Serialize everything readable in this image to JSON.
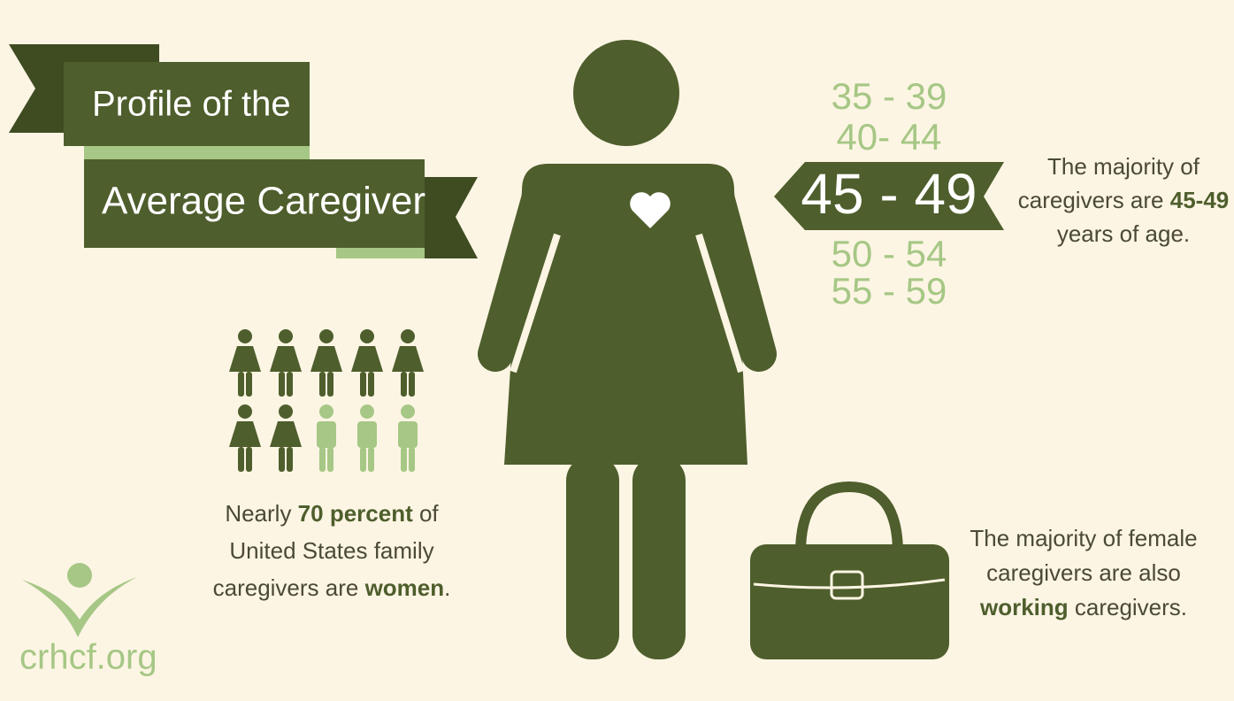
{
  "title": {
    "lines": [
      "Profile of the",
      "Average Caregiver"
    ]
  },
  "ages": {
    "above": [
      "35 - 39",
      "40- 44"
    ],
    "highlight": "45 - 49",
    "below": [
      "50 - 54",
      "55 - 59"
    ]
  },
  "age_note": {
    "lines": [
      [
        {
          "text": "The majority of"
        }
      ],
      [
        {
          "text": "caregivers are "
        },
        {
          "text": "45-49",
          "strong": true
        }
      ],
      [
        {
          "text": "years of age."
        }
      ]
    ]
  },
  "women_note": {
    "lines": [
      [
        {
          "text": "Nearly "
        },
        {
          "text": "70 percent",
          "strong": true
        },
        {
          "text": " of"
        }
      ],
      [
        {
          "text": "United States family"
        }
      ],
      [
        {
          "text": "caregivers are "
        },
        {
          "text": "women",
          "strong": true
        },
        {
          "text": "."
        }
      ]
    ]
  },
  "working_note": {
    "lines": [
      [
        {
          "text": "The majority of female"
        }
      ],
      [
        {
          "text": "caregivers are also"
        }
      ],
      [
        {
          "text": "working",
          "strong": true
        },
        {
          "text": " caregivers."
        }
      ]
    ]
  },
  "logo": {
    "text": "crhcf.org"
  }
}
